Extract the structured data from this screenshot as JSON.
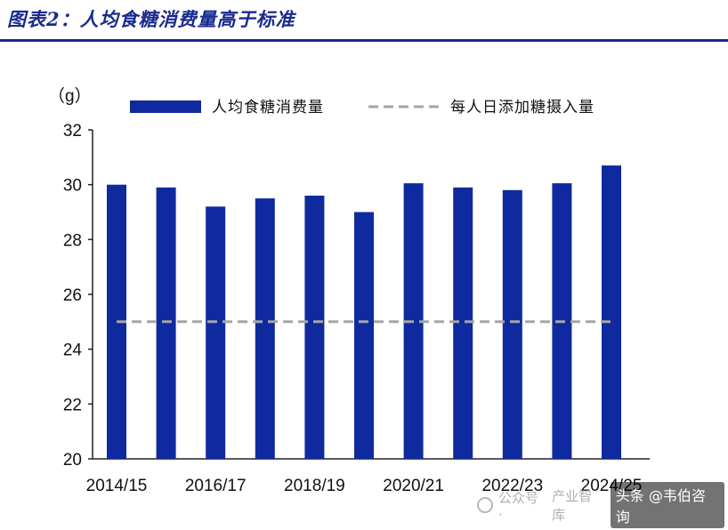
{
  "figure_title": "图表2：人均食糖消费量高于标准",
  "colors": {
    "bar": "#0f2a9e",
    "dashed_line": "#a6a6a6",
    "title": "#1a2a8c",
    "axis": "#222222"
  },
  "chart_data": {
    "type": "bar",
    "categories": [
      "2014/15",
      "2015/16",
      "2016/17",
      "2017/18",
      "2018/19",
      "2019/20",
      "2020/21",
      "2021/22",
      "2022/23",
      "2023/24",
      "2024/25"
    ],
    "x_tick_labels": [
      "2014/15",
      "2016/17",
      "2018/19",
      "2020/21",
      "2022/23",
      "2024/25"
    ],
    "series": [
      {
        "name": "人均食糖消费量",
        "type": "bar",
        "values": [
          30.0,
          29.9,
          29.2,
          29.5,
          29.6,
          29.0,
          30.05,
          29.9,
          29.8,
          30.05,
          30.7
        ]
      },
      {
        "name": "每人日添加糖摄入量",
        "type": "line",
        "style": "dashed",
        "values": [
          25,
          25,
          25,
          25,
          25,
          25,
          25,
          25,
          25,
          25,
          25
        ]
      }
    ],
    "y_unit": "（g）",
    "ylim": [
      20,
      32
    ],
    "y_ticks": [
      20,
      22,
      24,
      26,
      28,
      30,
      32
    ],
    "grid": false,
    "legend_position": "top"
  },
  "watermark": {
    "wechat_text": "公众号 ·",
    "faded_text": "产业智库",
    "badge_text": "头条 @韦伯咨询"
  }
}
